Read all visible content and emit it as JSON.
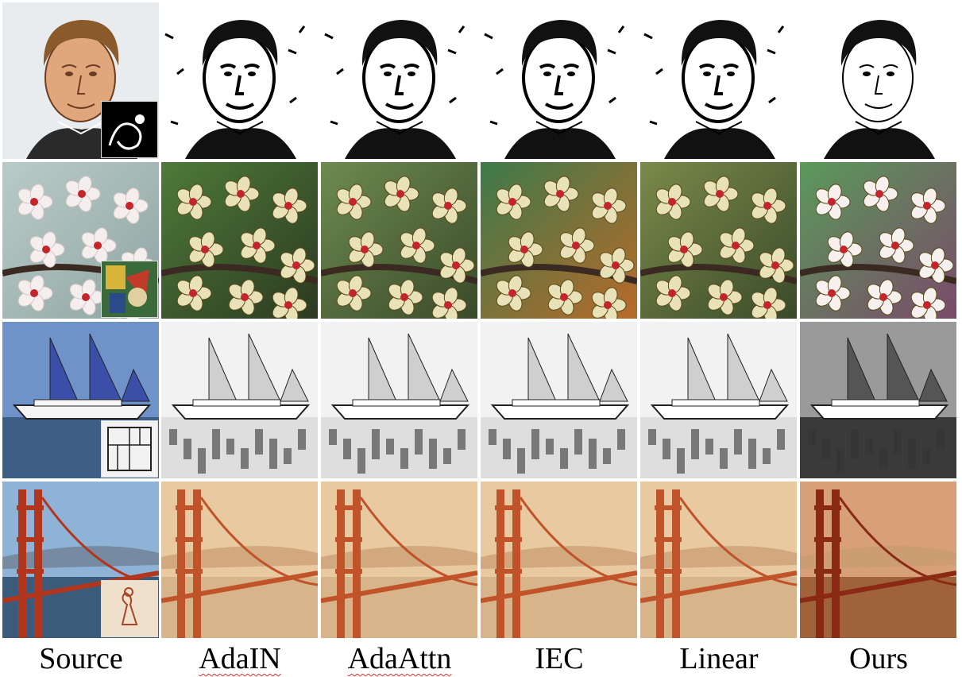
{
  "columns": [
    {
      "label": "Source",
      "squiggle": false
    },
    {
      "label": "AdaIN",
      "squiggle": true
    },
    {
      "label": "AdaAttn",
      "squiggle": true
    },
    {
      "label": "IEC",
      "squiggle": false
    },
    {
      "label": "Linear",
      "squiggle": false
    },
    {
      "label": "Ours",
      "squiggle": false
    }
  ],
  "rows": [
    {
      "name": "portrait",
      "style_inset": "ink-dragon-drawing"
    },
    {
      "name": "cherry-blossoms",
      "style_inset": "cubist-painting"
    },
    {
      "name": "sailing-ship",
      "style_inset": "architectural-floor-plan"
    },
    {
      "name": "golden-gate-bridge",
      "style_inset": "red-chalk-sketch"
    }
  ]
}
